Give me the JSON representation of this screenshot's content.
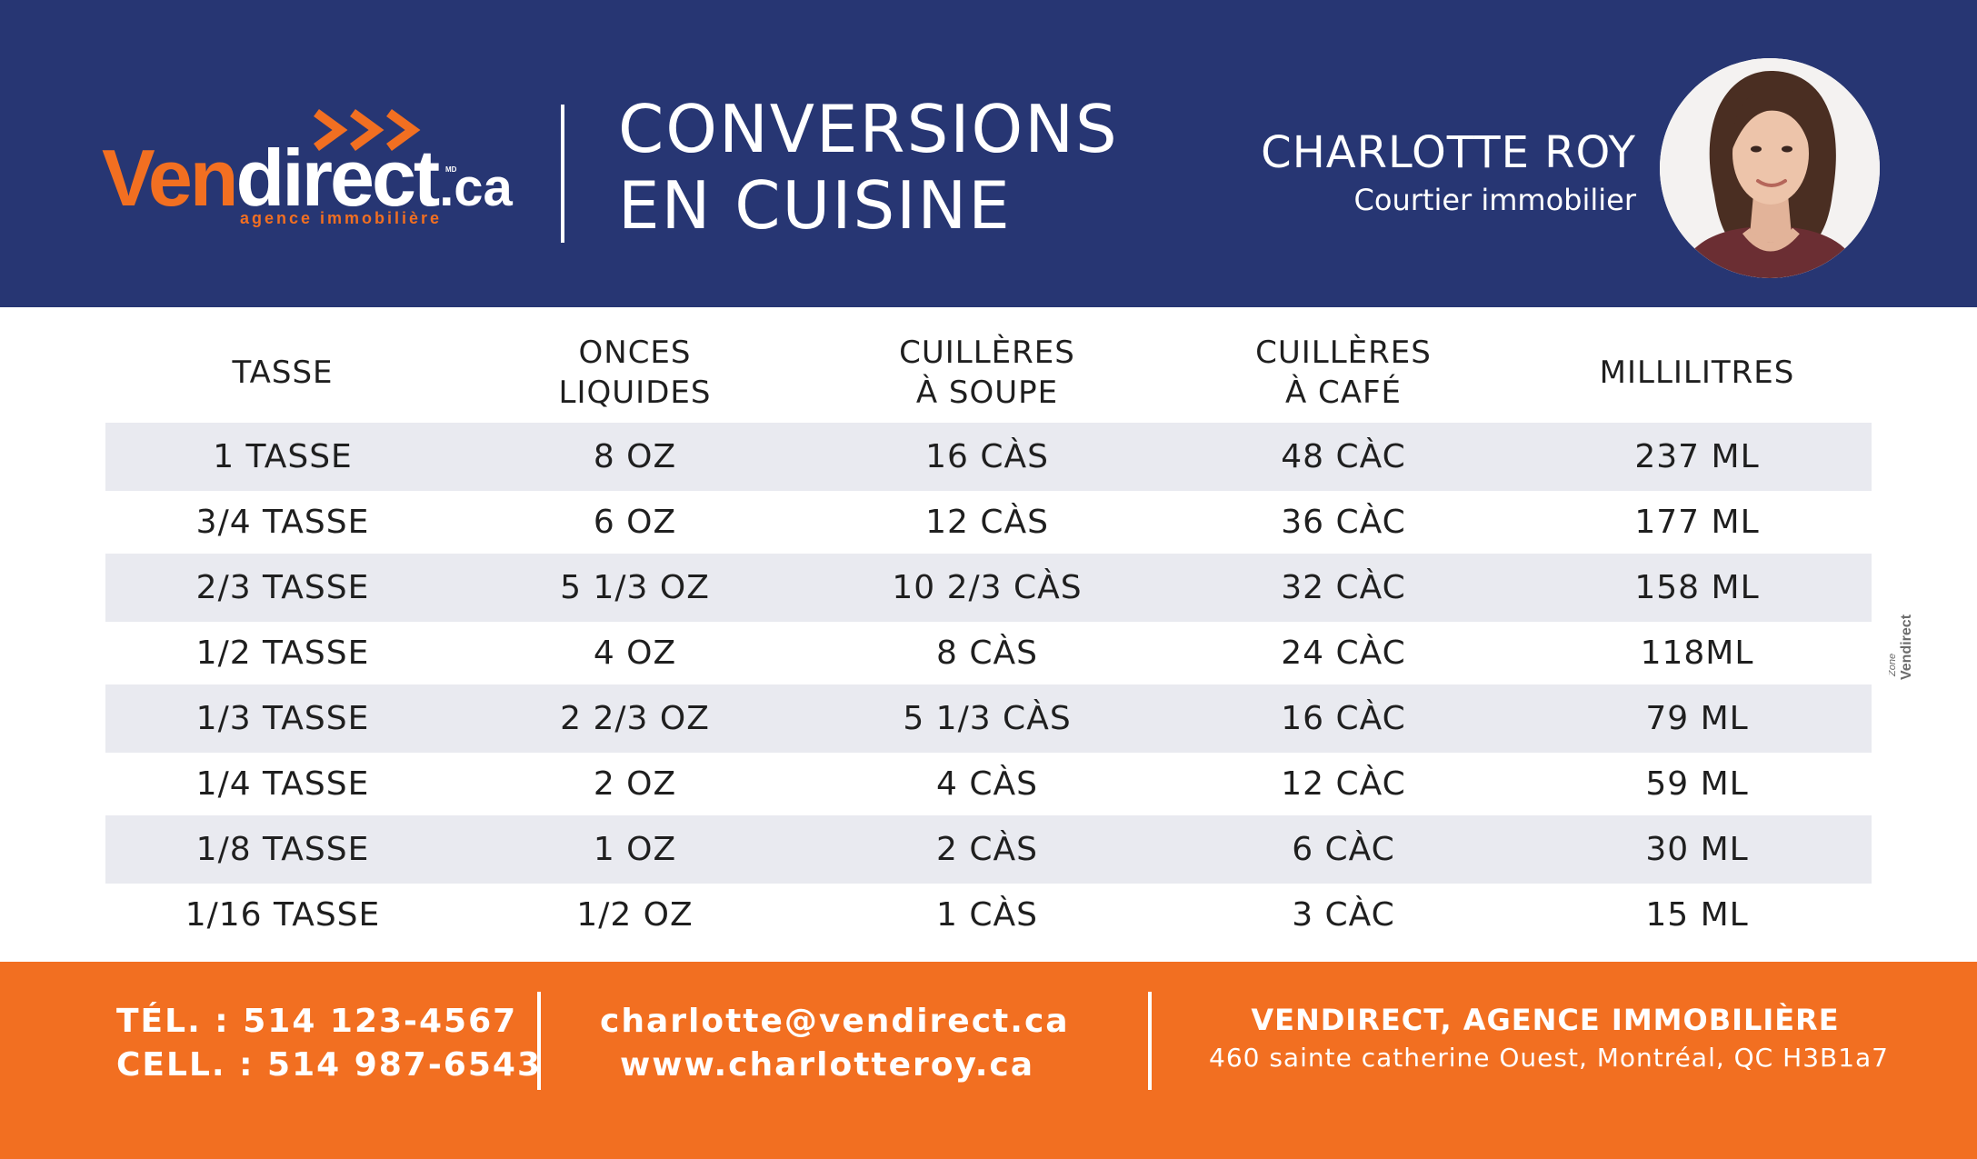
{
  "header": {
    "logo": {
      "brand_part1": "Ven",
      "brand_part2": "direct",
      "brand_suffix": ".ca",
      "trademark": "MD",
      "tagline": "agence immobilière"
    },
    "title_line1": "CONVERSIONS",
    "title_line2": "EN CUISINE",
    "agent_name": "CHARLOTTE ROY",
    "agent_role": "Courtier immobilier"
  },
  "table": {
    "headers": [
      [
        "TASSE"
      ],
      [
        "ONCES",
        "LIQUIDES"
      ],
      [
        "CUILLÈRES",
        "À SOUPE"
      ],
      [
        "CUILLÈRES",
        "À CAFÉ"
      ],
      [
        "MILLILITRES"
      ]
    ],
    "rows": [
      [
        "1 TASSE",
        "8 OZ",
        "16 CÀS",
        "48 CÀC",
        "237 ML"
      ],
      [
        "3/4 TASSE",
        "6 OZ",
        "12 CÀS",
        "36 CÀC",
        "177 ML"
      ],
      [
        "2/3 TASSE",
        "5 1/3 OZ",
        "10 2/3 CÀS",
        "32 CÀC",
        "158 ML"
      ],
      [
        "1/2 TASSE",
        "4 OZ",
        "8 CÀS",
        "24 CÀC",
        "118ML"
      ],
      [
        "1/3 TASSE",
        "2 2/3 OZ",
        "5 1/3 CÀS",
        "16 CÀC",
        "79 ML"
      ],
      [
        "1/4 TASSE",
        "2 OZ",
        "4 CÀS",
        "12 CÀC",
        "59 ML"
      ],
      [
        "1/8 TASSE",
        "1 OZ",
        "2 CÀS",
        "6 CÀC",
        "30 ML"
      ],
      [
        "1/16 TASSE",
        "1/2 OZ",
        "1 CÀS",
        "3 CÀC",
        "15 ML"
      ]
    ]
  },
  "side_mark": {
    "word1": "Zone",
    "word2": "Vendirect"
  },
  "footer": {
    "tel": "TÉL. : 514 123-4567",
    "cell": "CELL. : 514 987-6543",
    "email": "charlotte@vendirect.ca",
    "website": "www.charlotteroy.ca",
    "company": "VENDIRECT, AGENCE IMMOBILIÈRE",
    "address": "460 sainte catherine Ouest, Montréal, QC  H3B1a7"
  },
  "colors": {
    "navy": "#273673",
    "orange": "#f26f21",
    "row_shade": "#e9eaf0",
    "text": "#1f1f1f"
  },
  "icons": {
    "logo_arrows": "triple-chevron-right-icon",
    "agent_photo": "agent-portrait"
  }
}
